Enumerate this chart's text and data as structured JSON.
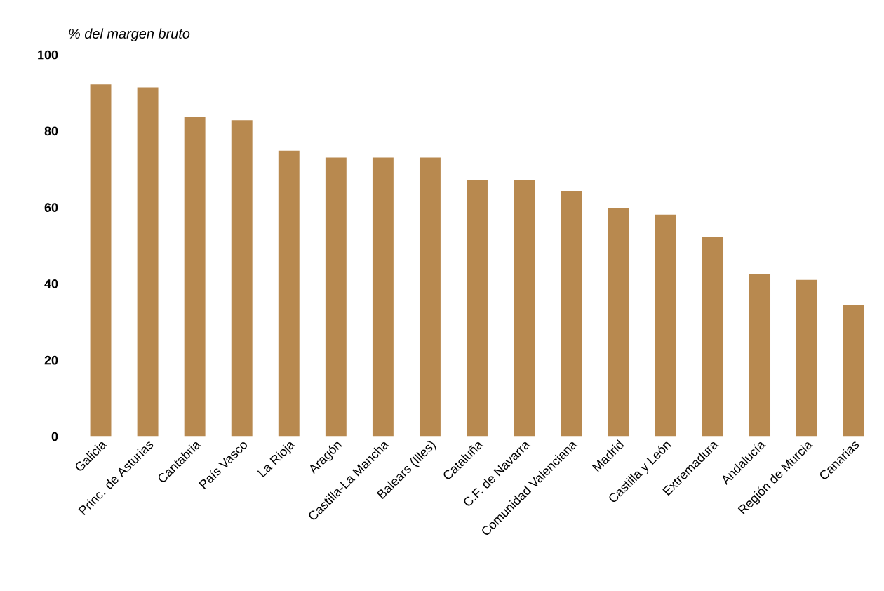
{
  "chart_data": {
    "type": "bar",
    "ylabel": "% del margen bruto",
    "categories": [
      "Galicia",
      "Princ. de Asturias",
      "Cantabria",
      "País Vasco",
      "La Rioja",
      "Aragón",
      "Castilla-La Mancha",
      "Balears (Illes)",
      "Cataluña",
      "C.F. de Navarra",
      "Comunidad Valenciana",
      "Madrid",
      "Castilla y León",
      "Extremadura",
      "Andalucía",
      "Región de Murcia",
      "Canarias"
    ],
    "values": [
      92.4,
      91.6,
      83.8,
      83.0,
      75.0,
      73.2,
      73.2,
      73.2,
      67.4,
      67.4,
      64.5,
      60.0,
      58.3,
      52.4,
      42.6,
      41.2,
      34.6
    ],
    "color": "#b8894f",
    "ylim": [
      0,
      100
    ],
    "yticks": [
      0,
      20,
      40,
      60,
      80,
      100
    ],
    "grid": false
  }
}
